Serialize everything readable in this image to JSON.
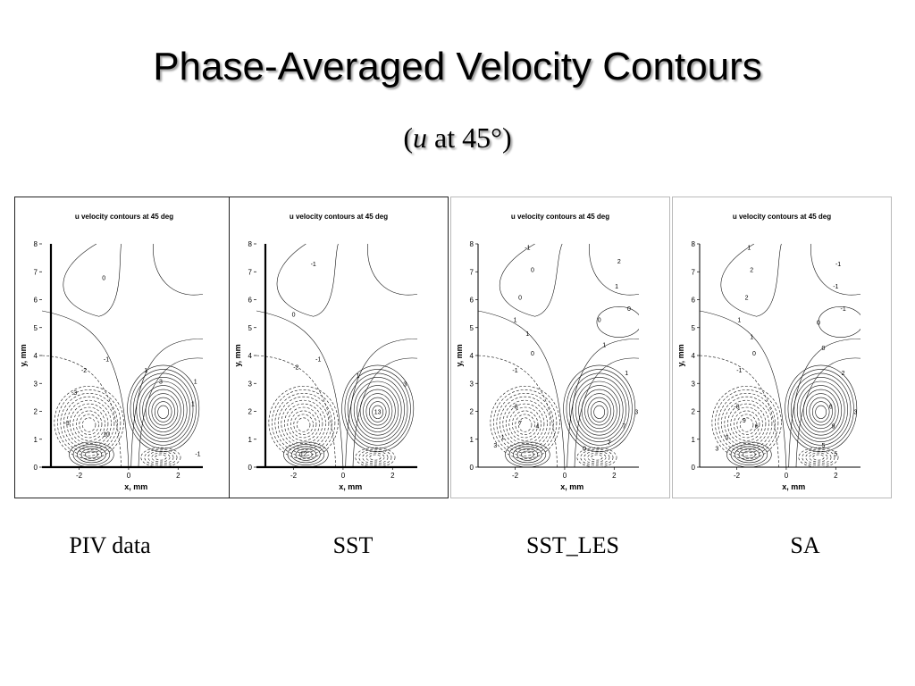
{
  "slide": {
    "title": "Phase-Averaged Velocity Contours",
    "subtitle_open": "(",
    "subtitle_var": "u",
    "subtitle_rest": " at 45°)"
  },
  "chart_data": [
    {
      "type": "contour",
      "title": "u velocity contours at 45 deg",
      "xlabel": "x, mm",
      "ylabel": "y, mm",
      "xticks": [
        "-2",
        "0",
        "2"
      ],
      "yticks": [
        "0",
        "1",
        "2",
        "3",
        "4",
        "5",
        "6",
        "7",
        "8"
      ],
      "xlim": [
        -3.5,
        3.0
      ],
      "ylim": [
        0,
        8
      ],
      "caption": "PIV data",
      "contour_labels": [
        {
          "text": "0",
          "x": -1.0,
          "y": 6.7
        },
        {
          "text": "-1",
          "x": -0.9,
          "y": 3.8
        },
        {
          "text": "-2",
          "x": -1.8,
          "y": 3.4
        },
        {
          "text": "-3",
          "x": -2.2,
          "y": 2.6
        },
        {
          "text": "-3",
          "x": -2.5,
          "y": 1.5
        },
        {
          "text": "1",
          "x": 0.7,
          "y": 3.4
        },
        {
          "text": "3",
          "x": 1.3,
          "y": 3.0
        },
        {
          "text": "1",
          "x": 2.7,
          "y": 3.0
        },
        {
          "text": "1",
          "x": 2.6,
          "y": 2.2
        },
        {
          "text": "10",
          "x": -0.9,
          "y": 1.1
        },
        {
          "text": "-1",
          "x": 2.8,
          "y": 0.4
        }
      ]
    },
    {
      "type": "contour",
      "title": "u velocity contours at 45 deg",
      "xlabel": "x, mm",
      "ylabel": "y, mm",
      "xticks": [
        "-2",
        "0",
        "2"
      ],
      "yticks": [
        "0",
        "1",
        "2",
        "3",
        "4",
        "5",
        "6",
        "7",
        "8"
      ],
      "xlim": [
        -3.5,
        3.0
      ],
      "ylim": [
        0,
        8
      ],
      "caption": "SST",
      "contour_labels": [
        {
          "text": "-1",
          "x": -1.2,
          "y": 7.2
        },
        {
          "text": "0",
          "x": -2.0,
          "y": 5.4
        },
        {
          "text": "-1",
          "x": -1.0,
          "y": 3.8
        },
        {
          "text": "-2",
          "x": -1.9,
          "y": 3.5
        },
        {
          "text": "1",
          "x": 0.6,
          "y": 3.2
        },
        {
          "text": "3",
          "x": 2.5,
          "y": 2.9
        },
        {
          "text": "13",
          "x": 1.4,
          "y": 1.9
        },
        {
          "text": "12",
          "x": -1.6,
          "y": 0.4
        }
      ]
    },
    {
      "type": "contour",
      "title": "u velocity contours at 45 deg",
      "xlabel": "x, mm",
      "ylabel": "y, mm",
      "xticks": [
        "-2",
        "0",
        "2"
      ],
      "yticks": [
        "0",
        "1",
        "2",
        "3",
        "4",
        "5",
        "6",
        "7",
        "8"
      ],
      "xlim": [
        -3.5,
        3.0
      ],
      "ylim": [
        0,
        8
      ],
      "caption": "SST_LES",
      "contour_labels": [
        {
          "text": "-1",
          "x": -1.5,
          "y": 7.8
        },
        {
          "text": "0",
          "x": -1.3,
          "y": 7.0
        },
        {
          "text": "0",
          "x": -1.8,
          "y": 6.0
        },
        {
          "text": "1",
          "x": -2.0,
          "y": 5.2
        },
        {
          "text": "1",
          "x": -1.5,
          "y": 4.7
        },
        {
          "text": "0",
          "x": -1.3,
          "y": 4.0
        },
        {
          "text": "-1",
          "x": -2.0,
          "y": 3.4
        },
        {
          "text": "2",
          "x": 2.2,
          "y": 7.3
        },
        {
          "text": "1",
          "x": 2.1,
          "y": 6.4
        },
        {
          "text": "0",
          "x": 2.6,
          "y": 5.6
        },
        {
          "text": "0",
          "x": 1.4,
          "y": 5.2
        },
        {
          "text": "1",
          "x": 1.6,
          "y": 4.3
        },
        {
          "text": "1",
          "x": 2.5,
          "y": 3.3
        },
        {
          "text": "-8",
          "x": -2.0,
          "y": 2.1
        },
        {
          "text": "7",
          "x": -1.8,
          "y": 1.5
        },
        {
          "text": "4",
          "x": -1.1,
          "y": 1.4
        },
        {
          "text": "1",
          "x": -2.5,
          "y": 1.0
        },
        {
          "text": "3",
          "x": -2.8,
          "y": 0.7
        },
        {
          "text": "7",
          "x": 2.4,
          "y": 1.4
        },
        {
          "text": "3",
          "x": 2.9,
          "y": 1.9
        },
        {
          "text": "7",
          "x": 1.8,
          "y": 0.8
        },
        {
          "text": "0",
          "x": 0.8,
          "y": 0.6
        }
      ]
    },
    {
      "type": "contour",
      "title": "u velocity contours at 45 deg",
      "xlabel": "x, mm",
      "ylabel": "y, mm",
      "xticks": [
        "-2",
        "0",
        "2"
      ],
      "yticks": [
        "0",
        "1",
        "2",
        "3",
        "4",
        "5",
        "6",
        "7",
        "8"
      ],
      "xlim": [
        -3.5,
        3.0
      ],
      "ylim": [
        0,
        8
      ],
      "caption": "SA",
      "contour_labels": [
        {
          "text": "1",
          "x": -1.5,
          "y": 7.8
        },
        {
          "text": "2",
          "x": -1.4,
          "y": 7.0
        },
        {
          "text": "2",
          "x": -1.6,
          "y": 6.0
        },
        {
          "text": "1",
          "x": -1.9,
          "y": 5.2
        },
        {
          "text": "1",
          "x": -1.4,
          "y": 4.6
        },
        {
          "text": "0",
          "x": -1.3,
          "y": 4.0
        },
        {
          "text": "-1",
          "x": -1.9,
          "y": 3.4
        },
        {
          "text": "-1",
          "x": 2.1,
          "y": 7.2
        },
        {
          "text": "-1",
          "x": 2.0,
          "y": 6.4
        },
        {
          "text": "-1",
          "x": 2.3,
          "y": 5.6
        },
        {
          "text": "0",
          "x": 1.3,
          "y": 5.1
        },
        {
          "text": "0",
          "x": 1.5,
          "y": 4.2
        },
        {
          "text": "2",
          "x": 2.3,
          "y": 3.3
        },
        {
          "text": "-8",
          "x": -2.0,
          "y": 2.1
        },
        {
          "text": "9",
          "x": -1.7,
          "y": 1.6
        },
        {
          "text": "6",
          "x": -1.2,
          "y": 1.4
        },
        {
          "text": "0",
          "x": -2.4,
          "y": 1.0
        },
        {
          "text": "3",
          "x": -2.8,
          "y": 0.6
        },
        {
          "text": "6",
          "x": 1.8,
          "y": 2.1
        },
        {
          "text": "3",
          "x": 2.8,
          "y": 1.9
        },
        {
          "text": "9",
          "x": 1.9,
          "y": 1.4
        },
        {
          "text": "5",
          "x": 1.5,
          "y": 0.7
        },
        {
          "text": "5",
          "x": 2.0,
          "y": 0.4
        }
      ]
    }
  ]
}
